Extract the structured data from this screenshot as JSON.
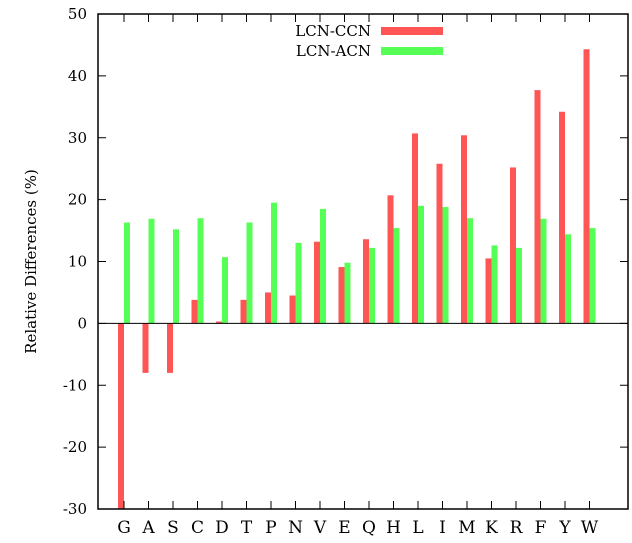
{
  "chart_data": {
    "type": "bar",
    "ylabel": "Relative Differences (%)",
    "xlabel": "",
    "ylim": [
      -30,
      50
    ],
    "yticks": [
      -30,
      -20,
      -10,
      0,
      10,
      20,
      30,
      40,
      50
    ],
    "grid": false,
    "legend_position": "top-center",
    "categories": [
      "G",
      "A",
      "S",
      "C",
      "D",
      "T",
      "P",
      "N",
      "V",
      "E",
      "Q",
      "H",
      "L",
      "I",
      "M",
      "K",
      "R",
      "F",
      "Y",
      "W"
    ],
    "series": [
      {
        "name": "LCN-CCN",
        "color": "#ff5555",
        "values": [
          -30,
          -8,
          -8,
          3.8,
          0.3,
          3.8,
          5,
          4.5,
          13.2,
          9.1,
          13.6,
          20.7,
          30.7,
          25.8,
          30.4,
          10.5,
          25.2,
          37.7,
          34.2,
          44.3
        ]
      },
      {
        "name": "LCN-ACN",
        "color": "#55ff55",
        "values": [
          16.3,
          16.9,
          15.2,
          17,
          10.7,
          16.3,
          19.5,
          13,
          18.5,
          9.8,
          12.2,
          15.4,
          19,
          18.8,
          17,
          12.6,
          12.2,
          16.9,
          14.4,
          15.4
        ]
      }
    ]
  }
}
